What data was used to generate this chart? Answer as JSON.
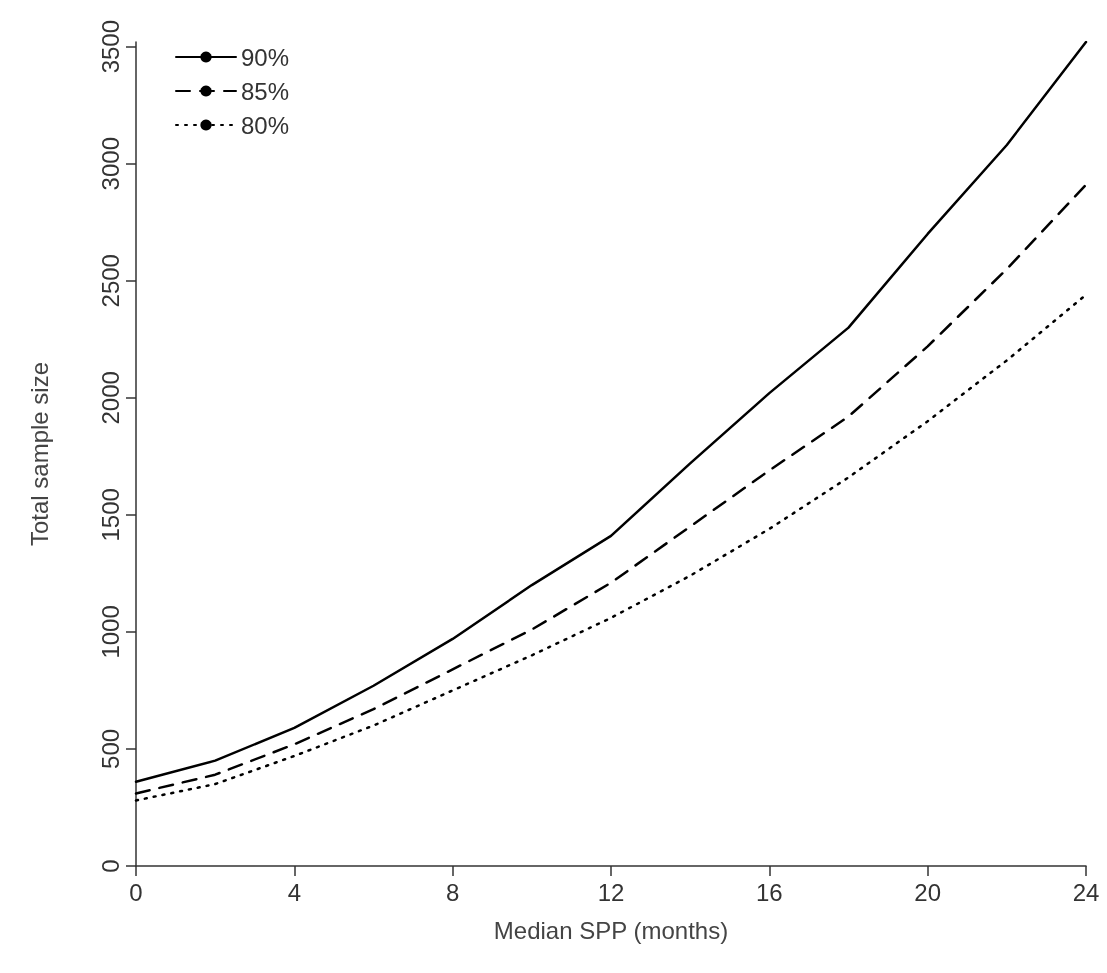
{
  "chart_data": {
    "type": "line",
    "xlabel": "Median SPP (months)",
    "ylabel": "Total sample size",
    "x": [
      0,
      2,
      4,
      6,
      8,
      10,
      12,
      14,
      16,
      18,
      20,
      22,
      24
    ],
    "series": [
      {
        "name": "90%",
        "color": "#000000",
        "line_style": "solid",
        "values": [
          360,
          450,
          590,
          770,
          970,
          1200,
          1410,
          1720,
          2020,
          2300,
          2700,
          3080,
          3520
        ]
      },
      {
        "name": "85%",
        "color": "#000000",
        "line_style": "dashed",
        "values": [
          310,
          390,
          520,
          670,
          840,
          1010,
          1210,
          1450,
          1690,
          1920,
          2220,
          2550,
          2910
        ]
      },
      {
        "name": "80%",
        "color": "#000000",
        "line_style": "dotted",
        "values": [
          280,
          350,
          470,
          600,
          750,
          900,
          1060,
          1240,
          1440,
          1660,
          1900,
          2160,
          2440
        ]
      }
    ],
    "xlim": [
      0,
      24
    ],
    "xticks": [
      0,
      4,
      8,
      12,
      16,
      20,
      24
    ],
    "ylim": [
      0,
      3520
    ],
    "yticks": [
      0,
      500,
      1000,
      1500,
      2000,
      2500,
      3000,
      3500
    ],
    "grid": false,
    "legend": "top left",
    "marker": "none"
  }
}
